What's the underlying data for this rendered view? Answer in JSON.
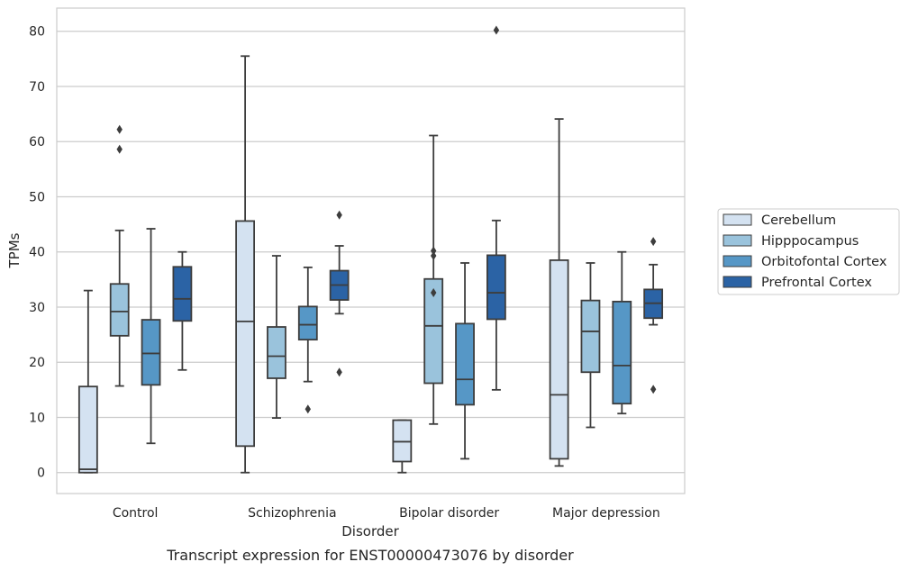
{
  "chart_data": {
    "type": "box",
    "caption": "Transcript expression for ENST00000473076 by disorder",
    "xlabel": "Disorder",
    "ylabel": "TPMs",
    "ylim": [
      -3.8,
      84.2
    ],
    "yticks": [
      0,
      10,
      20,
      30,
      40,
      50,
      60,
      70,
      80
    ],
    "grid": true,
    "legend_position": "right",
    "categories": [
      "Control",
      "Schizophrenia",
      "Bipolar disorder",
      "Major depression"
    ],
    "series": [
      {
        "name": "Cerebellum",
        "color": "#d4e2f1",
        "boxes": [
          {
            "whisker_low": 0.0,
            "q1": 0.0,
            "median": 0.6,
            "q3": 15.6,
            "whisker_high": 33.0,
            "outliers": []
          },
          {
            "whisker_low": 0.0,
            "q1": 4.8,
            "median": 27.4,
            "q3": 45.6,
            "whisker_high": 75.5,
            "outliers": []
          },
          {
            "whisker_low": 0.0,
            "q1": 2.0,
            "median": 5.6,
            "q3": 9.5,
            "whisker_high": 9.5,
            "outliers": []
          },
          {
            "whisker_low": 1.2,
            "q1": 2.5,
            "median": 14.1,
            "q3": 38.5,
            "whisker_high": 64.1,
            "outliers": []
          }
        ]
      },
      {
        "name": "Hipppocampus",
        "color": "#9ac3dc",
        "boxes": [
          {
            "whisker_low": 15.7,
            "q1": 24.8,
            "median": 29.2,
            "q3": 34.2,
            "whisker_high": 43.9,
            "outliers": [
              58.6,
              62.2
            ]
          },
          {
            "whisker_low": 9.9,
            "q1": 17.1,
            "median": 21.1,
            "q3": 26.4,
            "whisker_high": 39.3,
            "outliers": []
          },
          {
            "whisker_low": 8.8,
            "q1": 16.2,
            "median": 26.6,
            "q3": 35.1,
            "whisker_high": 61.1,
            "outliers": [
              32.6,
              39.3,
              40.2
            ]
          },
          {
            "whisker_low": 8.2,
            "q1": 18.2,
            "median": 25.6,
            "q3": 31.2,
            "whisker_high": 38.0,
            "outliers": []
          }
        ]
      },
      {
        "name": "Orbitofontal Cortex",
        "color": "#5697c6",
        "boxes": [
          {
            "whisker_low": 5.3,
            "q1": 15.9,
            "median": 21.6,
            "q3": 27.7,
            "whisker_high": 44.2,
            "outliers": []
          },
          {
            "whisker_low": 16.5,
            "q1": 24.1,
            "median": 26.8,
            "q3": 30.1,
            "whisker_high": 37.2,
            "outliers": [
              11.5
            ]
          },
          {
            "whisker_low": 2.5,
            "q1": 12.3,
            "median": 16.9,
            "q3": 27.0,
            "whisker_high": 38.0,
            "outliers": []
          },
          {
            "whisker_low": 10.7,
            "q1": 12.5,
            "median": 19.4,
            "q3": 31.0,
            "whisker_high": 40.0,
            "outliers": []
          }
        ]
      },
      {
        "name": "Prefrontal Cortex",
        "color": "#2b63a5",
        "boxes": [
          {
            "whisker_low": 18.6,
            "q1": 27.5,
            "median": 31.5,
            "q3": 37.3,
            "whisker_high": 40.0,
            "outliers": []
          },
          {
            "whisker_low": 28.8,
            "q1": 31.3,
            "median": 34.0,
            "q3": 36.6,
            "whisker_high": 41.1,
            "outliers": [
              18.2,
              46.7
            ]
          },
          {
            "whisker_low": 15.0,
            "q1": 27.8,
            "median": 32.6,
            "q3": 39.4,
            "whisker_high": 45.7,
            "outliers": [
              80.2
            ]
          },
          {
            "whisker_low": 26.8,
            "q1": 28.0,
            "median": 30.7,
            "q3": 33.2,
            "whisker_high": 37.7,
            "outliers": [
              15.1,
              41.9
            ]
          }
        ]
      }
    ]
  }
}
